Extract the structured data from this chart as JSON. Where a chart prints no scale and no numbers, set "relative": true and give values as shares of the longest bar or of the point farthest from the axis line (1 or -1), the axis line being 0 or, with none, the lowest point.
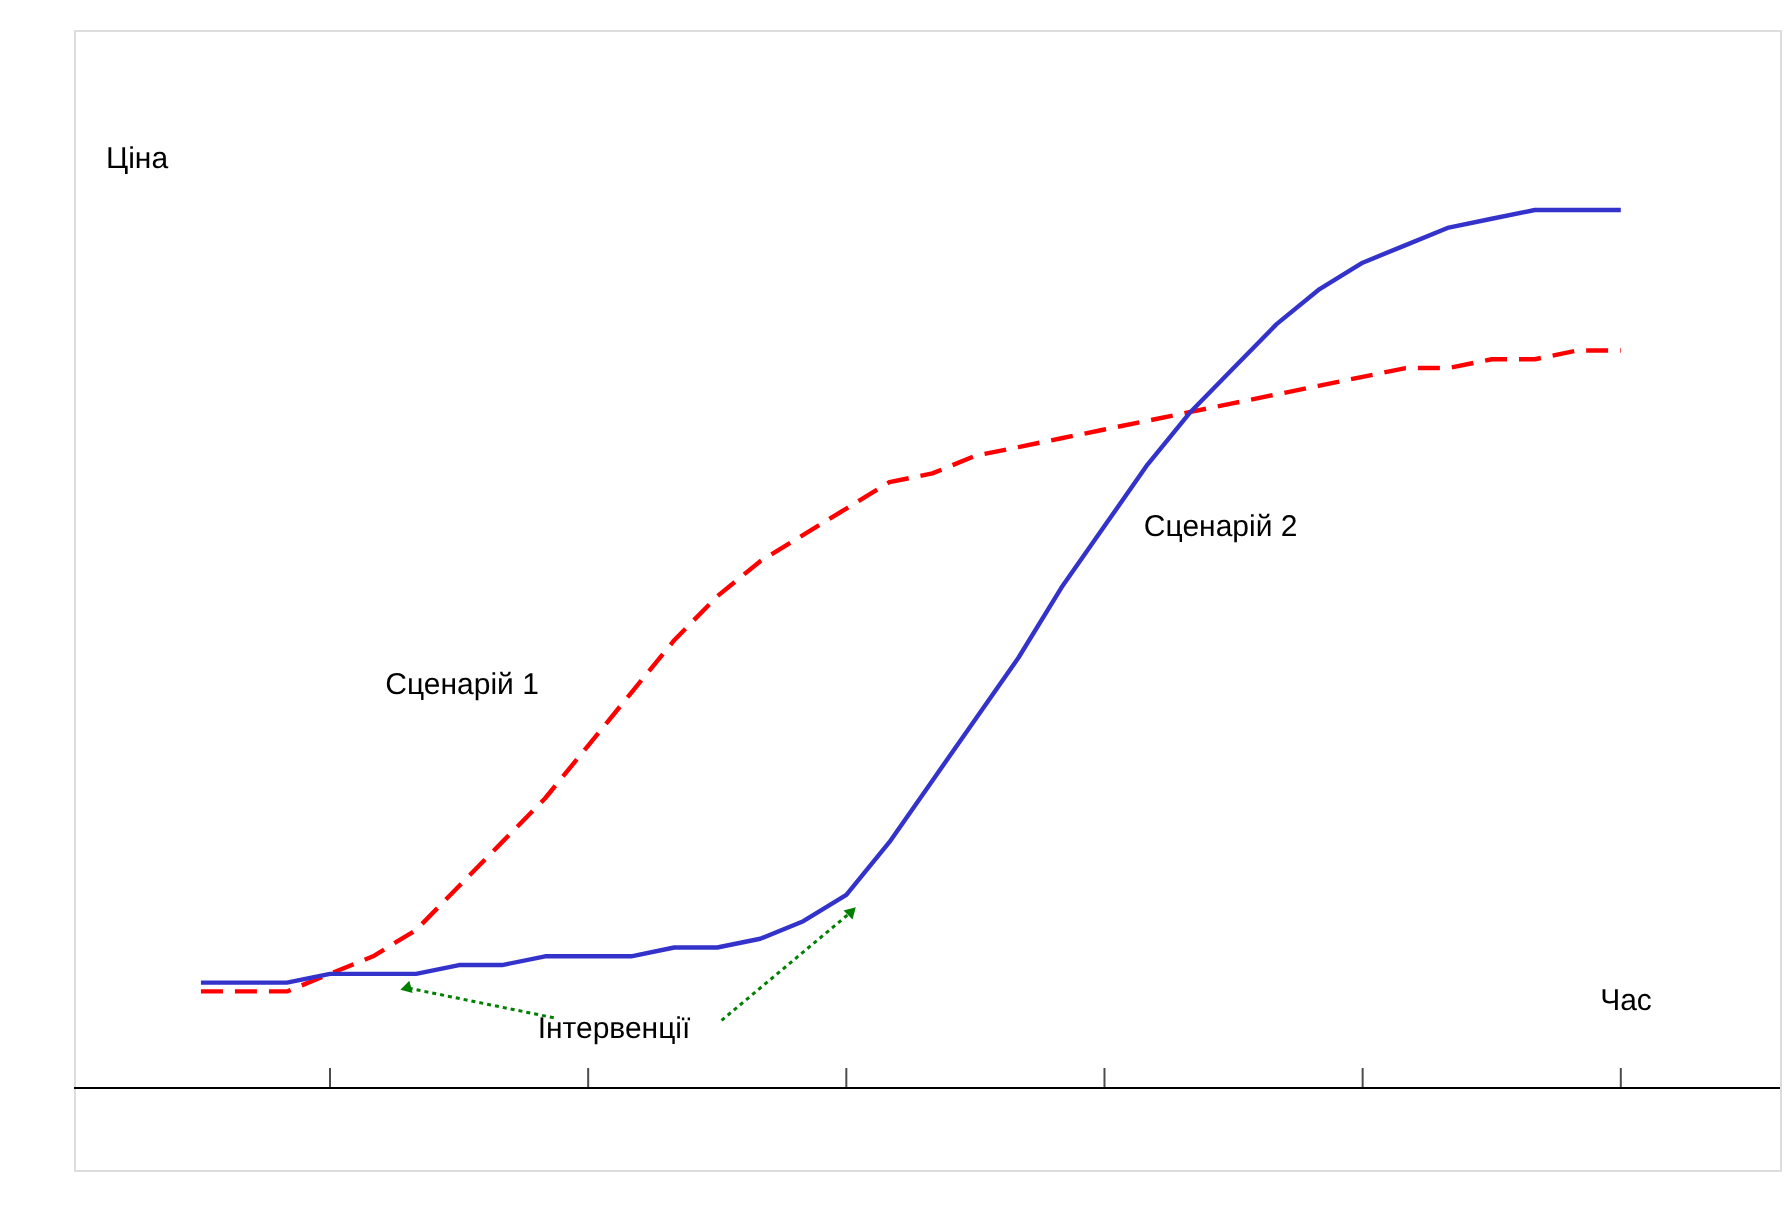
{
  "chart_data": {
    "type": "line",
    "relative": true,
    "ylabel": "Ціна",
    "xlabel": "Час",
    "categories": [
      null,
      null,
      null,
      null,
      null,
      null,
      null,
      null,
      null,
      null,
      null,
      null,
      null,
      null,
      null,
      null,
      null,
      null,
      null,
      null,
      null,
      null,
      null,
      null,
      null,
      null,
      null,
      null,
      null,
      null,
      null,
      null,
      null,
      null
    ],
    "series": [
      {
        "name": "Сценарій 1",
        "color": "#ff0000",
        "line_style": "dashed",
        "values": [
          0.11,
          0.11,
          0.11,
          0.13,
          0.15,
          0.18,
          0.23,
          0.28,
          0.33,
          0.39,
          0.45,
          0.51,
          0.56,
          0.6,
          0.63,
          0.66,
          0.69,
          0.7,
          0.72,
          0.73,
          0.74,
          0.75,
          0.76,
          0.77,
          0.78,
          0.79,
          0.8,
          0.81,
          0.82,
          0.82,
          0.83,
          0.83,
          0.84,
          0.84
        ]
      },
      {
        "name": "Сценарій 2",
        "color": "#3333cc",
        "line_style": "solid",
        "values": [
          0.12,
          0.12,
          0.12,
          0.13,
          0.13,
          0.13,
          0.14,
          0.14,
          0.15,
          0.15,
          0.15,
          0.16,
          0.16,
          0.17,
          0.19,
          0.22,
          0.28,
          0.35,
          0.42,
          0.49,
          0.57,
          0.64,
          0.71,
          0.77,
          0.82,
          0.87,
          0.91,
          0.94,
          0.96,
          0.98,
          0.99,
          1.0,
          1.0,
          1.0
        ]
      }
    ],
    "annotations": [
      "Інтервенції"
    ],
    "grid": false,
    "marker": "none"
  }
}
